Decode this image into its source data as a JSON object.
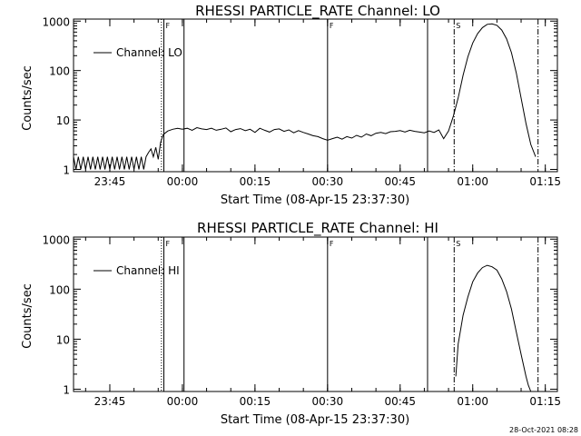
{
  "chart_data": [
    {
      "type": "line",
      "title": "RHESSI PARTICLE_RATE Channel: LO",
      "xlabel": "Start Time (08-Apr-15 23:37:30)",
      "ylabel": "Counts/sec",
      "y_scale": "log",
      "xlim": [
        "23:37:30",
        "01:17:30"
      ],
      "ylim": [
        0.9,
        1100
      ],
      "x_ticks": [
        "23:45",
        "00:00",
        "00:15",
        "00:30",
        "00:45",
        "01:00",
        "01:15"
      ],
      "y_ticks": [
        "1",
        "10",
        "100",
        "1000"
      ],
      "legend": {
        "placement": "top-left",
        "entries": [
          "Channel: LO"
        ]
      },
      "grid": false,
      "markers": [
        {
          "time": "23:55:40",
          "style": "dotted"
        },
        {
          "time": "23:56:10",
          "style": "solid",
          "label": "F"
        },
        {
          "time": "00:00:20",
          "style": "solid"
        },
        {
          "time": "00:30:00",
          "style": "solid",
          "label": "F"
        },
        {
          "time": "00:50:40",
          "style": "solid"
        },
        {
          "time": "00:56:10",
          "style": "dashdot",
          "label": "S"
        },
        {
          "time": "01:13:30",
          "style": "dashdot"
        }
      ],
      "series": [
        {
          "name": "Channel: LO",
          "x": [
            "23:37:30",
            "23:38:00",
            "23:38:30",
            "23:39:00",
            "23:39:30",
            "23:40:00",
            "23:40:30",
            "23:41:00",
            "23:41:30",
            "23:42:00",
            "23:42:30",
            "23:43:00",
            "23:43:30",
            "23:44:00",
            "23:44:30",
            "23:45:00",
            "23:45:30",
            "23:46:00",
            "23:46:30",
            "23:47:00",
            "23:47:30",
            "23:48:00",
            "23:48:30",
            "23:49:00",
            "23:49:30",
            "23:50:00",
            "23:50:30",
            "23:51:00",
            "23:51:30",
            "23:52:00",
            "23:52:30",
            "23:53:00",
            "23:53:30",
            "23:54:00",
            "23:54:30",
            "23:55:00",
            "23:55:30",
            "23:56:00",
            "23:56:30",
            "23:57:00",
            "23:58:00",
            "23:59:00",
            "00:00:00",
            "00:01:00",
            "00:02:00",
            "00:03:00",
            "00:04:00",
            "00:05:00",
            "00:06:00",
            "00:07:00",
            "00:08:00",
            "00:09:00",
            "00:10:00",
            "00:11:00",
            "00:12:00",
            "00:13:00",
            "00:14:00",
            "00:15:00",
            "00:16:00",
            "00:17:00",
            "00:18:00",
            "00:19:00",
            "00:20:00",
            "00:21:00",
            "00:22:00",
            "00:23:00",
            "00:24:00",
            "00:25:00",
            "00:26:00",
            "00:27:00",
            "00:28:00",
            "00:29:00",
            "00:30:00",
            "00:31:00",
            "00:32:00",
            "00:33:00",
            "00:34:00",
            "00:35:00",
            "00:36:00",
            "00:37:00",
            "00:38:00",
            "00:39:00",
            "00:40:00",
            "00:41:00",
            "00:42:00",
            "00:43:00",
            "00:44:00",
            "00:45:00",
            "00:46:00",
            "00:47:00",
            "00:48:00",
            "00:49:00",
            "00:50:00",
            "00:51:00",
            "00:52:00",
            "00:53:00",
            "00:54:00",
            "00:55:00",
            "00:56:00",
            "00:57:00",
            "00:58:00",
            "00:59:00",
            "01:00:00",
            "01:01:00",
            "01:02:00",
            "01:03:00",
            "01:04:00",
            "01:05:00",
            "01:06:00",
            "01:07:00",
            "01:08:00",
            "01:09:00",
            "01:10:00",
            "01:11:00",
            "01:12:00",
            "01:13:00"
          ],
          "y": [
            1.8,
            1,
            1.8,
            1,
            1.8,
            1,
            1.8,
            1,
            1.8,
            1,
            1.8,
            1,
            1.8,
            1,
            1.8,
            1,
            1.8,
            1,
            1.8,
            1,
            1.8,
            1,
            1.8,
            1,
            1.8,
            1,
            1.8,
            1,
            1.8,
            1,
            1.8,
            2.2,
            2.6,
            1.8,
            2.8,
            1.6,
            3.5,
            5,
            5.5,
            6,
            6.5,
            6.8,
            6.5,
            6.8,
            6.2,
            7,
            6.6,
            6.4,
            6.8,
            6.2,
            6.5,
            6.9,
            5.8,
            6.4,
            6.7,
            6.1,
            6.5,
            5.6,
            6.8,
            6.2,
            5.7,
            6.4,
            6.6,
            5.9,
            6.3,
            5.5,
            6.1,
            5.6,
            5.2,
            4.8,
            4.6,
            4.2,
            3.9,
            4.2,
            4.5,
            4.1,
            4.6,
            4.3,
            4.9,
            4.5,
            5.2,
            4.8,
            5.4,
            5.6,
            5.3,
            5.8,
            5.9,
            6.1,
            5.7,
            6.2,
            5.9,
            5.7,
            5.5,
            6,
            5.6,
            6.3,
            4.2,
            6,
            12,
            28,
            80,
            190,
            360,
            560,
            740,
            860,
            880,
            820,
            660,
            440,
            230,
            90,
            28,
            8.5,
            3.2,
            1.8
          ]
        }
      ]
    },
    {
      "type": "line",
      "title": "RHESSI PARTICLE_RATE Channel: HI",
      "xlabel": "Start Time (08-Apr-15 23:37:30)",
      "ylabel": "Counts/sec",
      "y_scale": "log",
      "xlim": [
        "23:37:30",
        "01:17:30"
      ],
      "ylim": [
        0.9,
        1100
      ],
      "x_ticks": [
        "23:45",
        "00:00",
        "00:15",
        "00:30",
        "00:45",
        "01:00",
        "01:15"
      ],
      "y_ticks": [
        "1",
        "10",
        "100",
        "1000"
      ],
      "legend": {
        "placement": "top-left",
        "entries": [
          "Channel: HI"
        ]
      },
      "grid": false,
      "markers": [
        {
          "time": "23:55:40",
          "style": "dotted"
        },
        {
          "time": "23:56:10",
          "style": "solid",
          "label": "F"
        },
        {
          "time": "00:00:20",
          "style": "solid"
        },
        {
          "time": "00:30:00",
          "style": "solid",
          "label": "F"
        },
        {
          "time": "00:50:40",
          "style": "solid"
        },
        {
          "time": "00:56:10",
          "style": "dashdot",
          "label": "S"
        },
        {
          "time": "01:13:30",
          "style": "dashdot"
        }
      ],
      "series": [
        {
          "name": "Channel: HI",
          "x": [
            "00:56:30",
            "00:57:00",
            "00:58:00",
            "00:59:00",
            "01:00:00",
            "01:01:00",
            "01:02:00",
            "01:03:00",
            "01:04:00",
            "01:05:00",
            "01:06:00",
            "01:07:00",
            "01:08:00",
            "01:09:00",
            "01:10:00",
            "01:11:00",
            "01:11:30",
            "01:12:00"
          ],
          "y": [
            1.8,
            8,
            30,
            70,
            140,
            210,
            270,
            300,
            280,
            240,
            160,
            90,
            40,
            14,
            5,
            1.8,
            1.2,
            0.9
          ]
        }
      ]
    }
  ],
  "footer": {
    "timestamp": "28-Oct-2021 08:28"
  }
}
